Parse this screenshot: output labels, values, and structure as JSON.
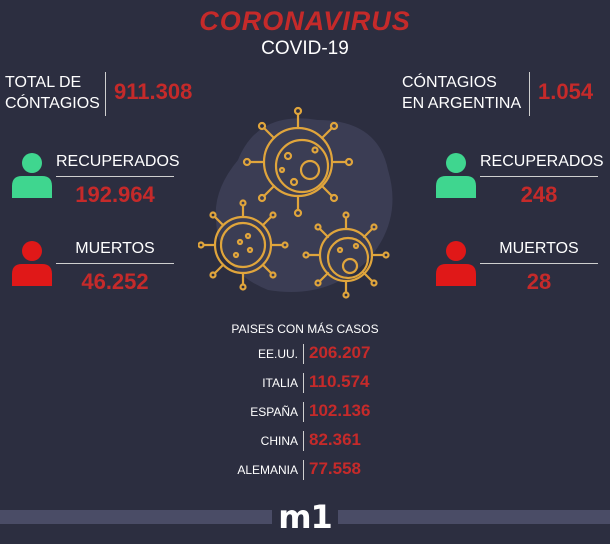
{
  "header": {
    "title": "CORONAVIRUS",
    "subtitle": "COVID-19"
  },
  "world": {
    "total_label_1": "TOTAL DE",
    "total_label_2": "CÓNTAGIOS",
    "total_value": "911.308",
    "recovered_label": "RECUPERADOS",
    "recovered_value": "192.964",
    "deaths_label": "MUERTOS",
    "deaths_value": "46.252"
  },
  "argentina": {
    "total_label_1": "CÓNTAGIOS",
    "total_label_2": "EN ARGENTINA",
    "total_value": "1.054",
    "recovered_label": "RECUPERADOS",
    "recovered_value": "248",
    "deaths_label": "MUERTOS",
    "deaths_value": "28"
  },
  "countries": {
    "title": "PAISES CON MÁS CASOS",
    "rows": [
      {
        "name": "EE.UU.",
        "value": "206.207"
      },
      {
        "name": "ITALIA",
        "value": "110.574"
      },
      {
        "name": "ESPAÑA",
        "value": "102.136"
      },
      {
        "name": "CHINA",
        "value": "82.361"
      },
      {
        "name": "ALEMANIA",
        "value": "77.558"
      }
    ]
  },
  "footer": {
    "logo_text": "m1"
  },
  "colors": {
    "background": "#2c2e40",
    "accent_red": "#c52a2a",
    "recovered_green": "#3fd68f",
    "deaths_red": "#e01818",
    "virus_gold": "#e0a53c"
  },
  "icons": [
    "person-green-icon",
    "person-red-icon",
    "virus-icon"
  ]
}
